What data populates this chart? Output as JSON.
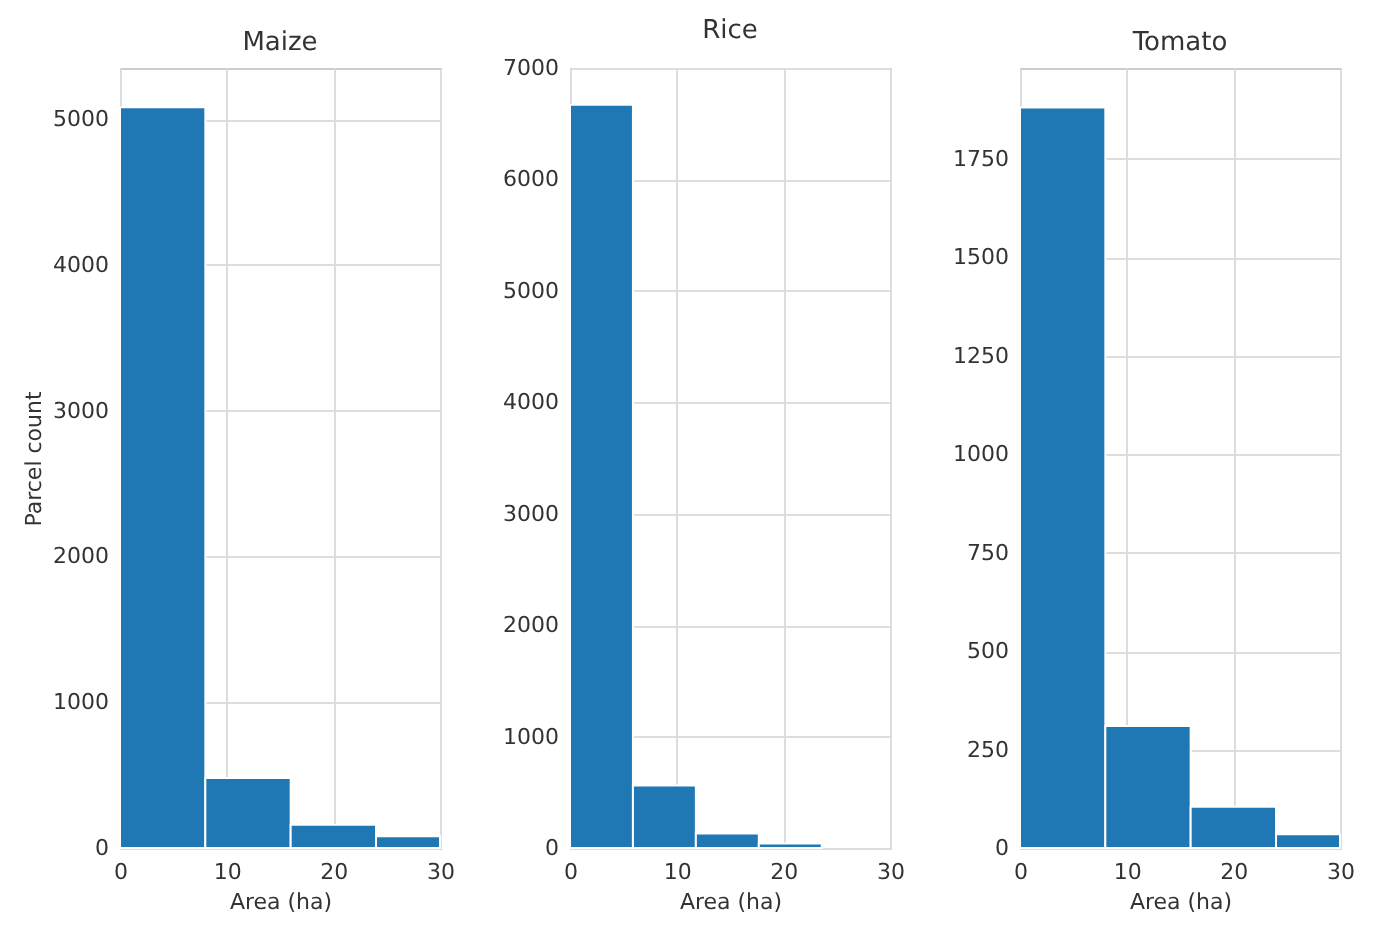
{
  "chart_data": [
    {
      "type": "histogram",
      "title": "Maize",
      "xlabel": "Area (ha)",
      "ylabel": "Parcel count",
      "bins": [
        0,
        8,
        16,
        24,
        30
      ],
      "values": [
        5080,
        480,
        160,
        80
      ],
      "color": "#1f77b4",
      "xlim": [
        0,
        30
      ],
      "xticks": [
        0,
        10,
        20,
        30
      ],
      "ylim": [
        0,
        5350
      ],
      "yticks": [
        0,
        1000,
        2000,
        3000,
        4000,
        5000
      ],
      "grid": true
    },
    {
      "type": "histogram",
      "title": "Rice",
      "xlabel": "Area (ha)",
      "bins": [
        0,
        5.9,
        11.8,
        17.7,
        23.6
      ],
      "values": [
        6670,
        560,
        130,
        40
      ],
      "color": "#1f77b4",
      "xlim": [
        0,
        30
      ],
      "xticks": [
        0,
        10,
        20,
        30
      ],
      "ylim": [
        0,
        7000
      ],
      "yticks": [
        0,
        1000,
        2000,
        3000,
        4000,
        5000,
        6000,
        7000
      ],
      "grid": true
    },
    {
      "type": "histogram",
      "title": "Tomato",
      "xlabel": "Area (ha)",
      "bins": [
        0,
        8,
        16,
        24,
        30
      ],
      "values": [
        1880,
        310,
        105,
        35
      ],
      "color": "#1f77b4",
      "xlim": [
        0,
        30
      ],
      "xticks": [
        0,
        10,
        20,
        30
      ],
      "ylim": [
        0,
        1980
      ],
      "yticks": [
        0,
        250,
        500,
        750,
        1000,
        1250,
        1500,
        1750
      ],
      "grid": true
    }
  ]
}
